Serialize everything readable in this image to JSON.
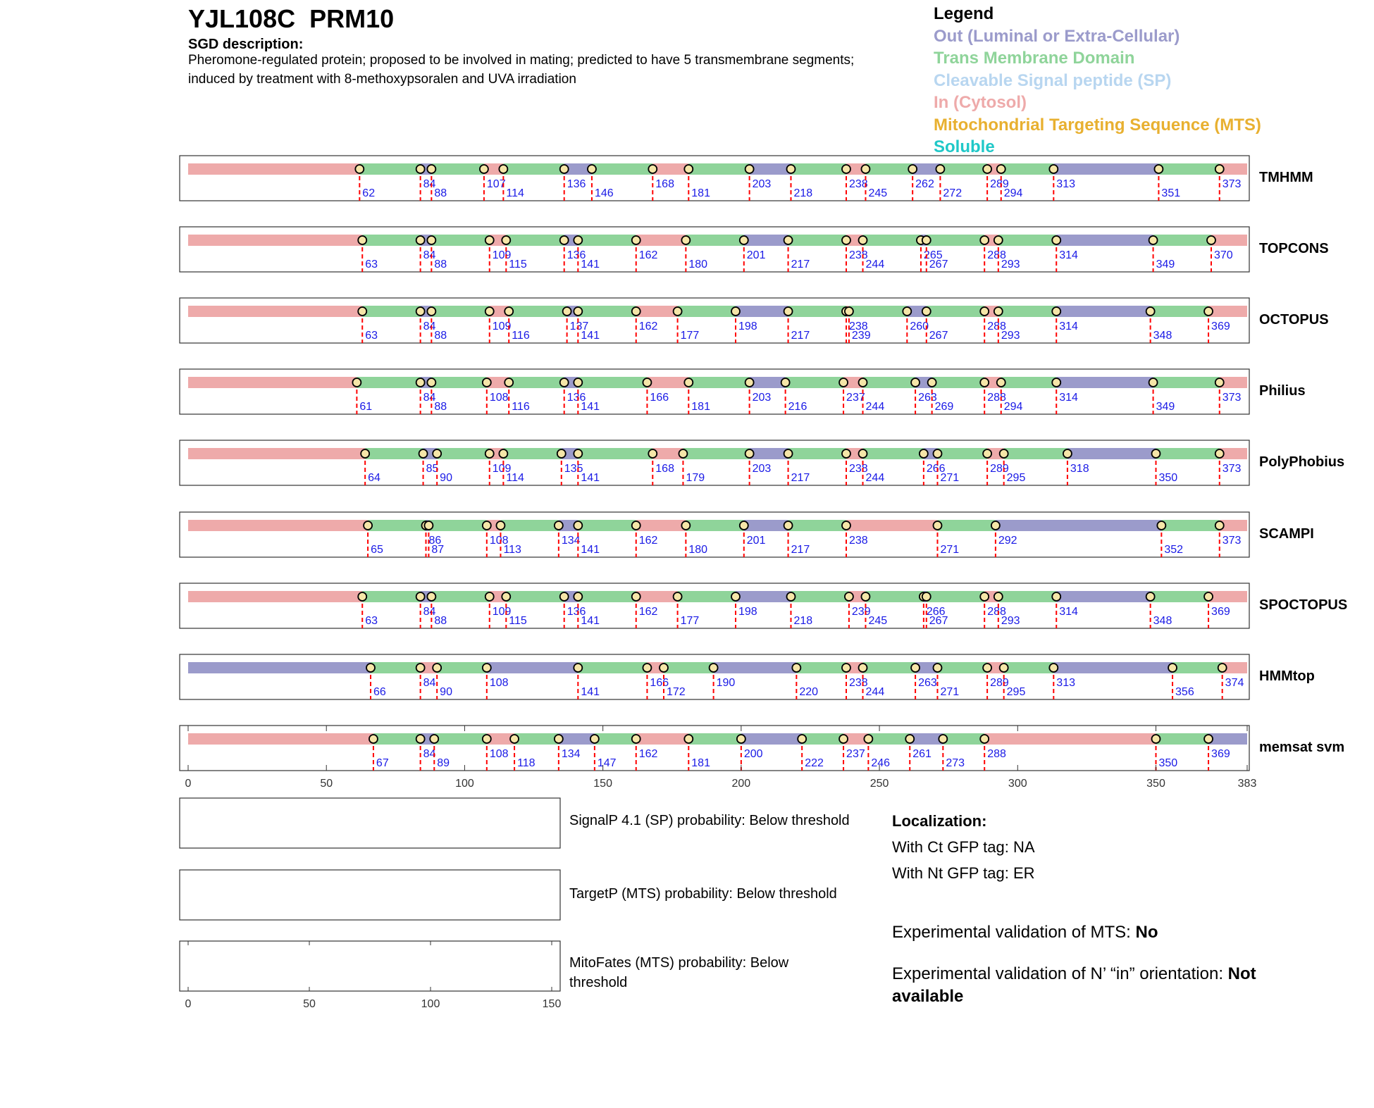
{
  "header": {
    "gene_id": "YJL108C",
    "gene_name": "PRM10",
    "sgd_label": "SGD description:",
    "sgd_description": "Pheromone-regulated protein; proposed to be involved in mating; predicted to have 5 transmembrane segments; induced by treatment with 8-methoxypsoralen and UVA irradiation"
  },
  "legend": {
    "title": "Legend",
    "items": [
      {
        "label": "Out (Luminal or Extra-Cellular)",
        "color": "#9b9bcb"
      },
      {
        "label": "Trans Membrane Domain",
        "color": "#8fd49a"
      },
      {
        "label": "Cleavable Signal peptide (SP)",
        "color": "#b8d6f0"
      },
      {
        "label": "In (Cytosol)",
        "color": "#eeaaaa"
      },
      {
        "label": "Mitochondrial Targeting Sequence (MTS)",
        "color": "#e8b030"
      },
      {
        "label": "Soluble",
        "color": "#20c8c8"
      }
    ]
  },
  "chart_data": [
    {
      "type": "topology-tracks",
      "xlim": [
        0,
        383
      ],
      "xticks": [
        0,
        50,
        100,
        150,
        200,
        250,
        300,
        350,
        383
      ],
      "colors": {
        "in": "#eeaaaa",
        "tm": "#8fd49a",
        "out": "#9b9bcb"
      },
      "tracks": [
        {
          "name": "TMHMM",
          "start": "in",
          "boundaries": [
            62,
            84,
            88,
            107,
            114,
            136,
            146,
            168,
            181,
            203,
            218,
            238,
            245,
            262,
            272,
            289,
            294,
            313,
            351,
            373
          ]
        },
        {
          "name": "TOPCONS",
          "start": "in",
          "boundaries": [
            63,
            84,
            88,
            109,
            115,
            136,
            141,
            162,
            180,
            201,
            217,
            238,
            244,
            265,
            267,
            288,
            293,
            314,
            349,
            370
          ]
        },
        {
          "name": "OCTOPUS",
          "start": "in",
          "boundaries": [
            63,
            84,
            88,
            109,
            116,
            137,
            141,
            162,
            177,
            198,
            217,
            238,
            239,
            260,
            267,
            288,
            293,
            314,
            348,
            369
          ]
        },
        {
          "name": "Philius",
          "start": "in",
          "boundaries": [
            61,
            84,
            88,
            108,
            116,
            136,
            141,
            166,
            181,
            203,
            216,
            237,
            244,
            263,
            269,
            288,
            294,
            314,
            349,
            373
          ]
        },
        {
          "name": "PolyPhobius",
          "start": "in",
          "boundaries": [
            64,
            85,
            90,
            109,
            114,
            135,
            141,
            168,
            179,
            203,
            217,
            238,
            244,
            266,
            271,
            289,
            295,
            318,
            350,
            373
          ]
        },
        {
          "name": "SCAMPI",
          "start": "in",
          "boundaries": [
            65,
            86,
            87,
            108,
            113,
            134,
            141,
            162,
            180,
            201,
            217,
            238,
            271,
            292,
            352,
            373
          ]
        },
        {
          "name": "SPOCTOPUS",
          "start": "in",
          "boundaries": [
            63,
            84,
            88,
            109,
            115,
            136,
            141,
            162,
            177,
            198,
            218,
            239,
            245,
            266,
            267,
            288,
            293,
            314,
            348,
            369
          ]
        },
        {
          "name": "HMMtop",
          "start": "out",
          "boundaries": [
            66,
            84,
            90,
            108,
            141,
            166,
            172,
            190,
            220,
            238,
            244,
            263,
            271,
            289,
            295,
            313,
            356,
            374
          ]
        },
        {
          "name": "memsat svm",
          "start": "in",
          "boundaries": [
            67,
            84,
            89,
            108,
            118,
            134,
            147,
            162,
            181,
            200,
            222,
            237,
            246,
            261,
            273,
            288,
            350,
            369
          ]
        }
      ]
    },
    {
      "type": "line",
      "xlim": [
        0,
        150
      ],
      "xticks": [
        0,
        50,
        100,
        150
      ],
      "panels": [
        "SignalP 4.1 (SP)",
        "TargetP (MTS)",
        "MitoFates (MTS)"
      ],
      "series": []
    }
  ],
  "probabilities": {
    "signalp": "SignalP 4.1 (SP) probability: Below threshold",
    "targetp": "TargetP (MTS) probability: Below threshold",
    "mitofates": "MitoFates (MTS) probability: Below threshold"
  },
  "localization": {
    "title": "Localization:",
    "ct_gfp": "With Ct GFP tag: NA",
    "nt_gfp": "With Nt GFP tag: ER"
  },
  "experimental": {
    "mts_label": "Experimental validation of MTS: ",
    "mts_value": "No",
    "orientation_label": "Experimental validation of N’ “in” orientation: ",
    "orientation_value": "Not available"
  }
}
